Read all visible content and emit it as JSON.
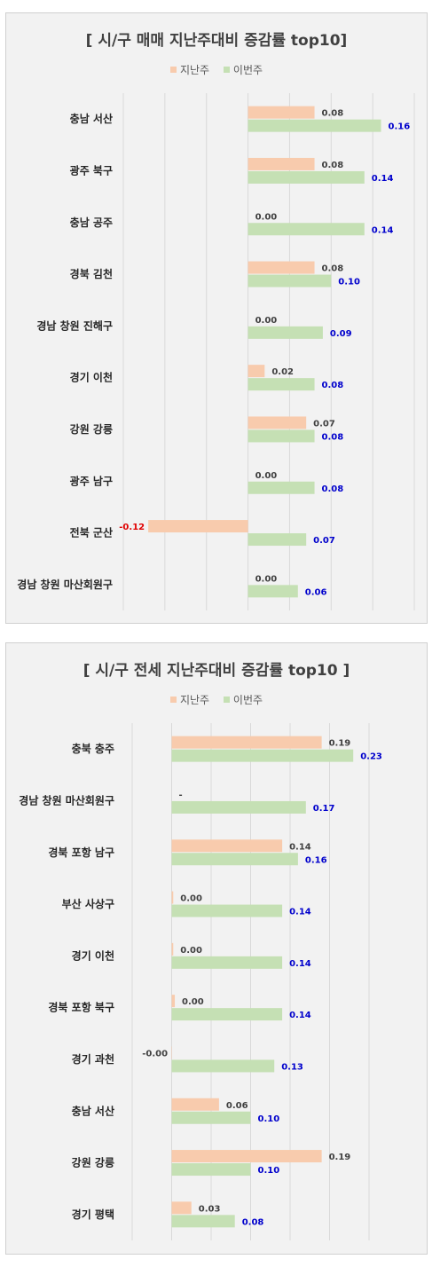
{
  "colors": {
    "last_week": "#f8cbad",
    "this_week": "#c5e0b4",
    "last_label": "#404040",
    "this_label": "#0000cc",
    "negative_label": "#e00000"
  },
  "legend": {
    "last_week": "지난주",
    "this_week": "이번주"
  },
  "chart_data": [
    {
      "type": "bar",
      "orientation": "horizontal",
      "title": "[ 시/구 매매 지난주대비 증감률 top10]",
      "categories": [
        "충남 서산",
        "광주 북구",
        "충남 공주",
        "경북 김천",
        "경남 창원 진해구",
        "경기 이천",
        "강원 강릉",
        "광주 남구",
        "전북 군산",
        "경남 창원 마산회원구"
      ],
      "series": [
        {
          "name": "지난주",
          "values": [
            0.08,
            0.08,
            0.0,
            0.08,
            0.0,
            0.02,
            0.07,
            0.0,
            -0.12,
            0.0
          ],
          "labels": [
            "0.08",
            "0.08",
            "0.00",
            "0.08",
            "0.00",
            "0.02",
            "0.07",
            "0.00",
            "-0.12",
            "0.00"
          ]
        },
        {
          "name": "이번주",
          "values": [
            0.16,
            0.14,
            0.14,
            0.1,
            0.09,
            0.08,
            0.08,
            0.08,
            0.07,
            0.06
          ],
          "labels": [
            "0.16",
            "0.14",
            "0.14",
            "0.10",
            "0.09",
            "0.08",
            "0.08",
            "0.08",
            "0.07",
            "0.06"
          ]
        }
      ],
      "xlim": [
        -0.15,
        0.2
      ],
      "grid_step": 0.05,
      "grid": true,
      "legend_position": "top"
    },
    {
      "type": "bar",
      "orientation": "horizontal",
      "title": "[ 시/구 전세 지난주대비 증감률 top10 ]",
      "categories": [
        "충북 충주",
        "경남 창원 마산회원구",
        "경북 포항 남구",
        "부산 사상구",
        "경기 이천",
        "경북 포항 북구",
        "경기 과천",
        "충남 서산",
        "강원 강릉",
        "경기 평택"
      ],
      "series": [
        {
          "name": "지난주",
          "values": [
            0.19,
            0,
            0.14,
            0.002,
            0.002,
            0.004,
            -0.0005,
            0.06,
            0.19,
            0.025
          ],
          "labels": [
            "0.19",
            "-",
            "0.14",
            "0.00",
            "0.00",
            "0.00",
            "-0.00",
            "0.06",
            "0.19",
            "0.03"
          ]
        },
        {
          "name": "이번주",
          "values": [
            0.23,
            0.17,
            0.16,
            0.14,
            0.14,
            0.14,
            0.13,
            0.1,
            0.1,
            0.08
          ],
          "labels": [
            "0.23",
            "0.17",
            "0.16",
            "0.14",
            "0.14",
            "0.14",
            "0.13",
            "0.10",
            "0.10",
            "0.08"
          ]
        }
      ],
      "xlim": [
        -0.05,
        0.25
      ],
      "grid_step": 0.05,
      "grid": true,
      "legend_position": "top"
    }
  ]
}
